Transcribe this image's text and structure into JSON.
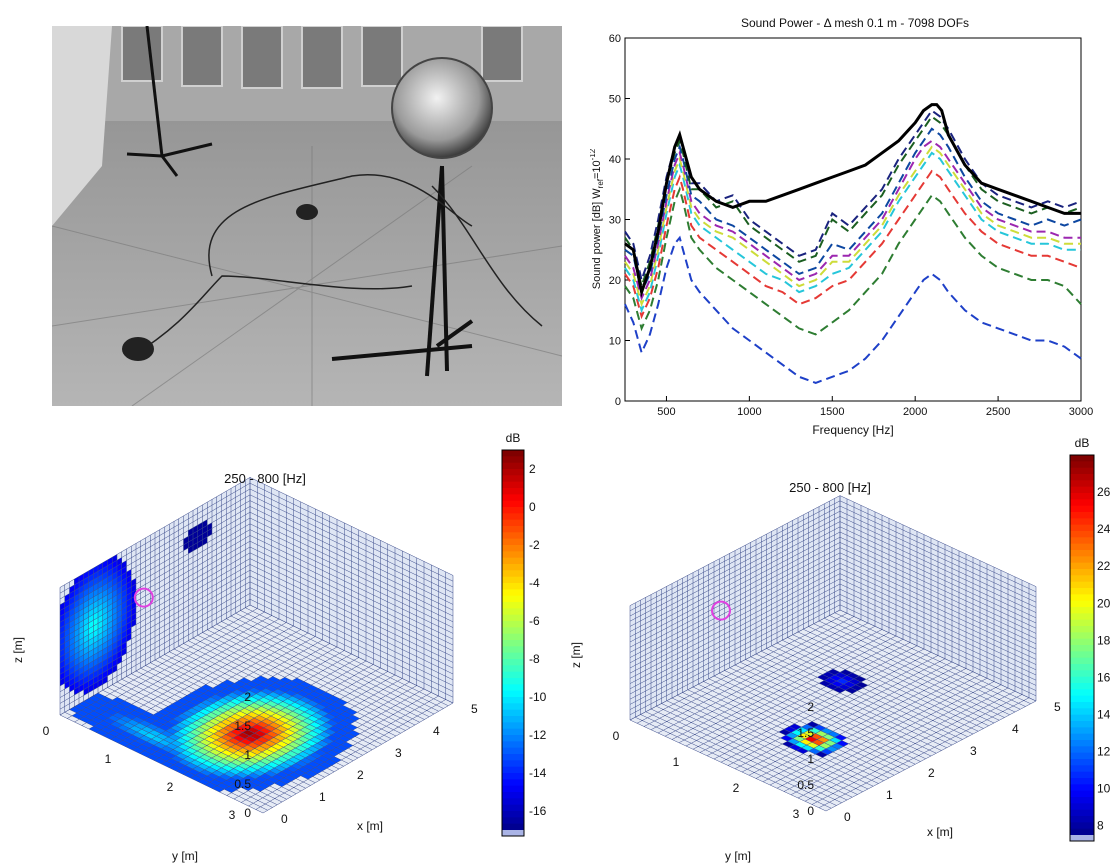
{
  "photo": {
    "description_icon": "measurement-setup-photo"
  },
  "chart_data": [
    {
      "type": "line",
      "title": "Sound Power - Δ mesh 0.1 m - 7098 DOFs",
      "xlabel": "Frequency [Hz]",
      "ylabel": "Sound power [dB] W",
      "ylabel_sub": "ref",
      "ylabel_sup": "=10",
      "ylabel_exp": "-12",
      "xlim": [
        250,
        3000
      ],
      "ylim": [
        0,
        60
      ],
      "xticks": [
        500,
        1000,
        1500,
        2000,
        2500,
        3000
      ],
      "yticks": [
        0,
        10,
        20,
        30,
        40,
        50,
        60
      ],
      "grid": false,
      "series": [
        {
          "color": "#000000",
          "dash": false,
          "width": 3,
          "x": [
            250,
            300,
            350,
            400,
            450,
            500,
            550,
            580,
            600,
            650,
            700,
            800,
            900,
            1000,
            1100,
            1200,
            1300,
            1400,
            1500,
            1600,
            1700,
            1800,
            1900,
            2000,
            2050,
            2100,
            2130,
            2160,
            2200,
            2300,
            2400,
            2500,
            2600,
            2700,
            2800,
            2900,
            3000
          ],
          "y": [
            26,
            25,
            18,
            22,
            28,
            36,
            42,
            44,
            42,
            37,
            35,
            33,
            32,
            33,
            33,
            34,
            35,
            36,
            37,
            38,
            39,
            41,
            43,
            46,
            48,
            49,
            49,
            48,
            44,
            39,
            36,
            35,
            34,
            33,
            32,
            31,
            31
          ]
        },
        {
          "color": "#1a237e",
          "dash": true,
          "x": [
            250,
            300,
            350,
            400,
            450,
            500,
            550,
            580,
            600,
            650,
            700,
            800,
            900,
            1000,
            1100,
            1200,
            1300,
            1400,
            1500,
            1600,
            1700,
            1800,
            1900,
            2000,
            2050,
            2100,
            2150,
            2200,
            2300,
            2400,
            2500,
            2600,
            2700,
            2800,
            2900,
            3000
          ],
          "y": [
            28,
            26,
            20,
            24,
            30,
            37,
            42,
            44,
            42,
            36,
            36,
            33,
            34,
            30,
            28,
            26,
            24,
            25,
            31,
            29,
            32,
            35,
            40,
            44,
            46,
            48,
            47,
            45,
            40,
            36,
            34,
            33,
            32,
            33,
            32,
            33
          ]
        },
        {
          "color": "#1b5e20",
          "dash": true,
          "x": [
            250,
            300,
            350,
            400,
            450,
            500,
            550,
            580,
            600,
            650,
            700,
            800,
            900,
            1000,
            1100,
            1200,
            1300,
            1400,
            1500,
            1600,
            1700,
            1800,
            1900,
            2000,
            2050,
            2100,
            2150,
            2200,
            2300,
            2400,
            2500,
            2600,
            2700,
            2800,
            2900,
            3000
          ],
          "y": [
            27,
            25,
            19,
            23,
            29,
            36,
            41,
            43,
            41,
            35,
            35,
            32,
            33,
            29,
            27,
            25,
            23,
            24,
            30,
            28,
            31,
            34,
            39,
            43,
            45,
            47,
            46,
            44,
            39,
            35,
            33,
            32,
            31,
            32,
            31,
            32
          ]
        },
        {
          "color": "#0d47a1",
          "dash": true,
          "x": [
            250,
            300,
            350,
            400,
            450,
            500,
            550,
            580,
            600,
            650,
            700,
            800,
            900,
            1000,
            1100,
            1200,
            1300,
            1400,
            1500,
            1600,
            1700,
            1800,
            1900,
            2000,
            2050,
            2100,
            2150,
            2200,
            2300,
            2400,
            2500,
            2600,
            2700,
            2800,
            2900,
            3000
          ],
          "y": [
            25,
            24,
            18,
            21,
            27,
            34,
            40,
            42,
            40,
            34,
            33,
            30,
            29,
            27,
            25,
            23,
            21,
            22,
            26,
            25,
            28,
            31,
            36,
            41,
            43,
            45,
            44,
            42,
            37,
            33,
            31,
            30,
            29,
            30,
            29,
            30
          ]
        },
        {
          "color": "#9c27b0",
          "dash": true,
          "x": [
            250,
            300,
            350,
            400,
            450,
            500,
            550,
            580,
            600,
            650,
            700,
            800,
            900,
            1000,
            1100,
            1200,
            1300,
            1400,
            1500,
            1600,
            1700,
            1800,
            1900,
            2000,
            2050,
            2100,
            2150,
            2200,
            2300,
            2400,
            2500,
            2600,
            2700,
            2800,
            2900,
            3000
          ],
          "y": [
            24,
            22,
            17,
            20,
            26,
            33,
            39,
            41,
            39,
            33,
            31,
            29,
            28,
            26,
            24,
            22,
            20,
            21,
            24,
            24,
            27,
            30,
            35,
            40,
            42,
            43,
            42,
            40,
            36,
            32,
            30,
            29,
            28,
            28,
            27,
            27
          ]
        },
        {
          "color": "#cddc39",
          "dash": true,
          "x": [
            250,
            300,
            350,
            400,
            450,
            500,
            550,
            580,
            600,
            650,
            700,
            800,
            900,
            1000,
            1100,
            1200,
            1300,
            1400,
            1500,
            1600,
            1700,
            1800,
            1900,
            2000,
            2050,
            2100,
            2150,
            2200,
            2300,
            2400,
            2500,
            2600,
            2700,
            2800,
            2900,
            3000
          ],
          "y": [
            23,
            21,
            16,
            19,
            25,
            32,
            38,
            40,
            38,
            32,
            30,
            28,
            27,
            25,
            23,
            21,
            19,
            20,
            23,
            23,
            26,
            29,
            34,
            38,
            40,
            42,
            41,
            39,
            35,
            31,
            29,
            28,
            27,
            27,
            26,
            26
          ]
        },
        {
          "color": "#26c6da",
          "dash": true,
          "x": [
            250,
            300,
            350,
            400,
            450,
            500,
            550,
            580,
            600,
            650,
            700,
            800,
            900,
            1000,
            1100,
            1200,
            1300,
            1400,
            1500,
            1600,
            1700,
            1800,
            1900,
            2000,
            2050,
            2100,
            2150,
            2200,
            2300,
            2400,
            2500,
            2600,
            2700,
            2800,
            2900,
            3000
          ],
          "y": [
            22,
            20,
            15,
            18,
            24,
            31,
            37,
            39,
            37,
            31,
            29,
            27,
            25,
            23,
            21,
            20,
            18,
            19,
            21,
            22,
            25,
            28,
            33,
            37,
            39,
            41,
            40,
            38,
            34,
            30,
            28,
            27,
            26,
            26,
            25,
            25
          ]
        },
        {
          "color": "#e53935",
          "dash": true,
          "x": [
            250,
            300,
            350,
            400,
            450,
            500,
            550,
            580,
            600,
            650,
            700,
            800,
            900,
            1000,
            1100,
            1200,
            1300,
            1400,
            1500,
            1600,
            1700,
            1800,
            1900,
            2000,
            2050,
            2100,
            2150,
            2200,
            2300,
            2400,
            2500,
            2600,
            2700,
            2800,
            2900,
            3000
          ],
          "y": [
            21,
            19,
            14,
            17,
            22,
            29,
            35,
            37,
            35,
            29,
            27,
            25,
            23,
            21,
            19,
            18,
            16,
            17,
            19,
            20,
            23,
            26,
            30,
            34,
            36,
            38,
            37,
            35,
            31,
            28,
            26,
            25,
            24,
            24,
            23,
            22
          ]
        },
        {
          "color": "#2e7d32",
          "dash": true,
          "x": [
            250,
            300,
            350,
            400,
            450,
            500,
            550,
            580,
            600,
            650,
            700,
            800,
            900,
            1000,
            1100,
            1200,
            1300,
            1400,
            1500,
            1600,
            1700,
            1800,
            1900,
            2000,
            2050,
            2100,
            2150,
            2200,
            2300,
            2400,
            2500,
            2600,
            2700,
            2800,
            2900,
            3000
          ],
          "y": [
            19,
            17,
            12,
            15,
            20,
            27,
            33,
            35,
            33,
            27,
            25,
            22,
            20,
            18,
            16,
            14,
            12,
            11,
            13,
            15,
            18,
            21,
            26,
            30,
            32,
            34,
            33,
            31,
            27,
            24,
            22,
            21,
            20,
            20,
            19,
            16
          ]
        },
        {
          "color": "#1e40c8",
          "dash": true,
          "x": [
            250,
            300,
            350,
            400,
            450,
            500,
            550,
            580,
            600,
            650,
            700,
            800,
            900,
            1000,
            1100,
            1200,
            1300,
            1400,
            1500,
            1600,
            1700,
            1800,
            1900,
            2000,
            2050,
            2100,
            2150,
            2200,
            2300,
            2400,
            2500,
            2600,
            2700,
            2800,
            2900,
            3000
          ],
          "y": [
            16,
            13,
            8,
            11,
            16,
            22,
            26,
            27,
            25,
            20,
            18,
            15,
            12,
            10,
            8,
            6,
            4,
            3,
            4,
            5,
            7,
            10,
            14,
            18,
            20,
            21,
            20,
            18,
            15,
            13,
            12,
            11,
            10,
            10,
            9,
            7
          ]
        }
      ]
    },
    {
      "type": "heatmap",
      "title": "250 - 800 [Hz]",
      "xlabel": "x [m]",
      "ylabel": "y [m]",
      "zlabel": "z [m]",
      "xticks": [
        0,
        1,
        2,
        3,
        4,
        5
      ],
      "yticks": [
        0,
        1,
        2,
        3
      ],
      "zticks": [
        0,
        0.5,
        1,
        1.5,
        2
      ],
      "colorbar_label": "dB",
      "colorbar_ticks": [
        2,
        0,
        -2,
        -4,
        -6,
        -8,
        -10,
        -12,
        -14,
        -16
      ],
      "clim": [
        -17,
        3
      ]
    },
    {
      "type": "heatmap",
      "title": "250 - 800 [Hz]",
      "xlabel": "x [m]",
      "ylabel": "y [m]",
      "zlabel": "z [m]",
      "xticks": [
        0,
        1,
        2,
        3,
        4,
        5
      ],
      "yticks": [
        0,
        1,
        2,
        3
      ],
      "zticks": [
        0,
        0.5,
        1,
        1.5,
        2
      ],
      "colorbar_label": "dB",
      "colorbar_ticks": [
        26,
        24,
        22,
        20,
        18,
        16,
        14,
        12,
        10,
        8
      ],
      "clim": [
        7.5,
        28
      ]
    }
  ]
}
